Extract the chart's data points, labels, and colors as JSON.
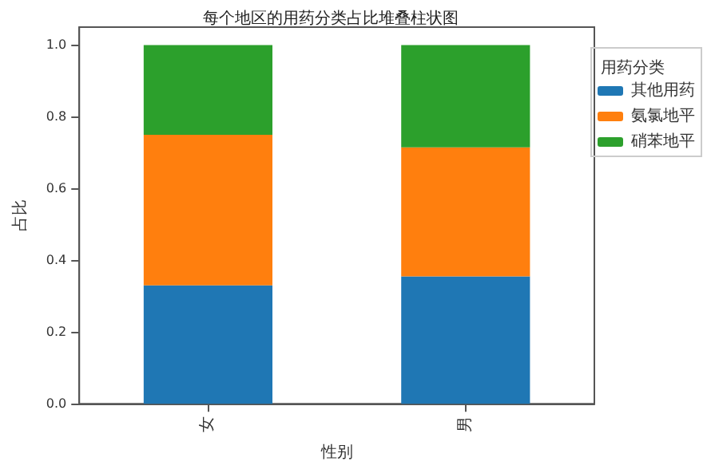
{
  "chart_data": {
    "type": "bar",
    "title": "每个地区的用药分类占比堆叠柱状图",
    "xlabel": "性别",
    "ylabel": "占比",
    "legend_title": "用药分类",
    "categories": [
      "女",
      "男"
    ],
    "stacked": true,
    "series": [
      {
        "name": "其他用药",
        "color": "#1f77b4",
        "values": [
          0.33,
          0.355
        ]
      },
      {
        "name": "氨氯地平",
        "color": "#ff7f0e",
        "values": [
          0.42,
          0.36
        ]
      },
      {
        "name": "硝苯地平",
        "color": "#2ca02c",
        "values": [
          0.25,
          0.285
        ]
      }
    ],
    "ylim": [
      0,
      1.05
    ],
    "yticks": [
      {
        "value": 0,
        "label": "0.0"
      },
      {
        "value": 0.2,
        "label": "0.2"
      },
      {
        "value": 0.4,
        "label": "0.4"
      },
      {
        "value": 0.6,
        "label": "0.6"
      },
      {
        "value": 0.8,
        "label": "0.8"
      },
      {
        "value": 1,
        "label": "1.0"
      }
    ],
    "legend": "top right"
  }
}
